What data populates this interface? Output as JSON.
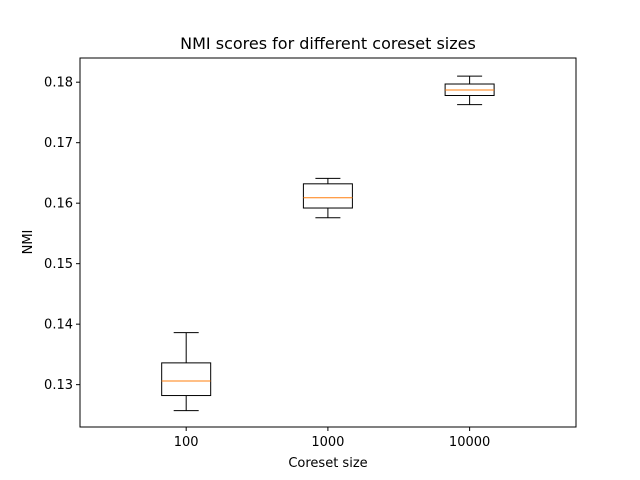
{
  "chart_data": {
    "type": "box",
    "title": "NMI scores for different coreset sizes",
    "xlabel": "Coreset size",
    "ylabel": "NMI",
    "categories": [
      "100",
      "1000",
      "10000"
    ],
    "ylim": [
      0.123,
      0.184
    ],
    "yticks": [
      0.13,
      0.14,
      0.15,
      0.16,
      0.17,
      0.18
    ],
    "ytick_labels": [
      "0.13",
      "0.14",
      "0.15",
      "0.16",
      "0.17",
      "0.18"
    ],
    "grid": false,
    "boxes": [
      {
        "category": "100",
        "whisker_low": 0.1257,
        "q1": 0.1282,
        "median": 0.1306,
        "q3": 0.1336,
        "whisker_high": 0.1386
      },
      {
        "category": "1000",
        "whisker_low": 0.1576,
        "q1": 0.1592,
        "median": 0.1609,
        "q3": 0.1632,
        "whisker_high": 0.1641
      },
      {
        "category": "10000",
        "whisker_low": 0.1763,
        "q1": 0.1778,
        "median": 0.1787,
        "q3": 0.1797,
        "whisker_high": 0.181
      }
    ],
    "colors": {
      "box": "#000000",
      "median": "#ff7f0e",
      "whisker": "#000000",
      "axes": "#000000"
    }
  }
}
